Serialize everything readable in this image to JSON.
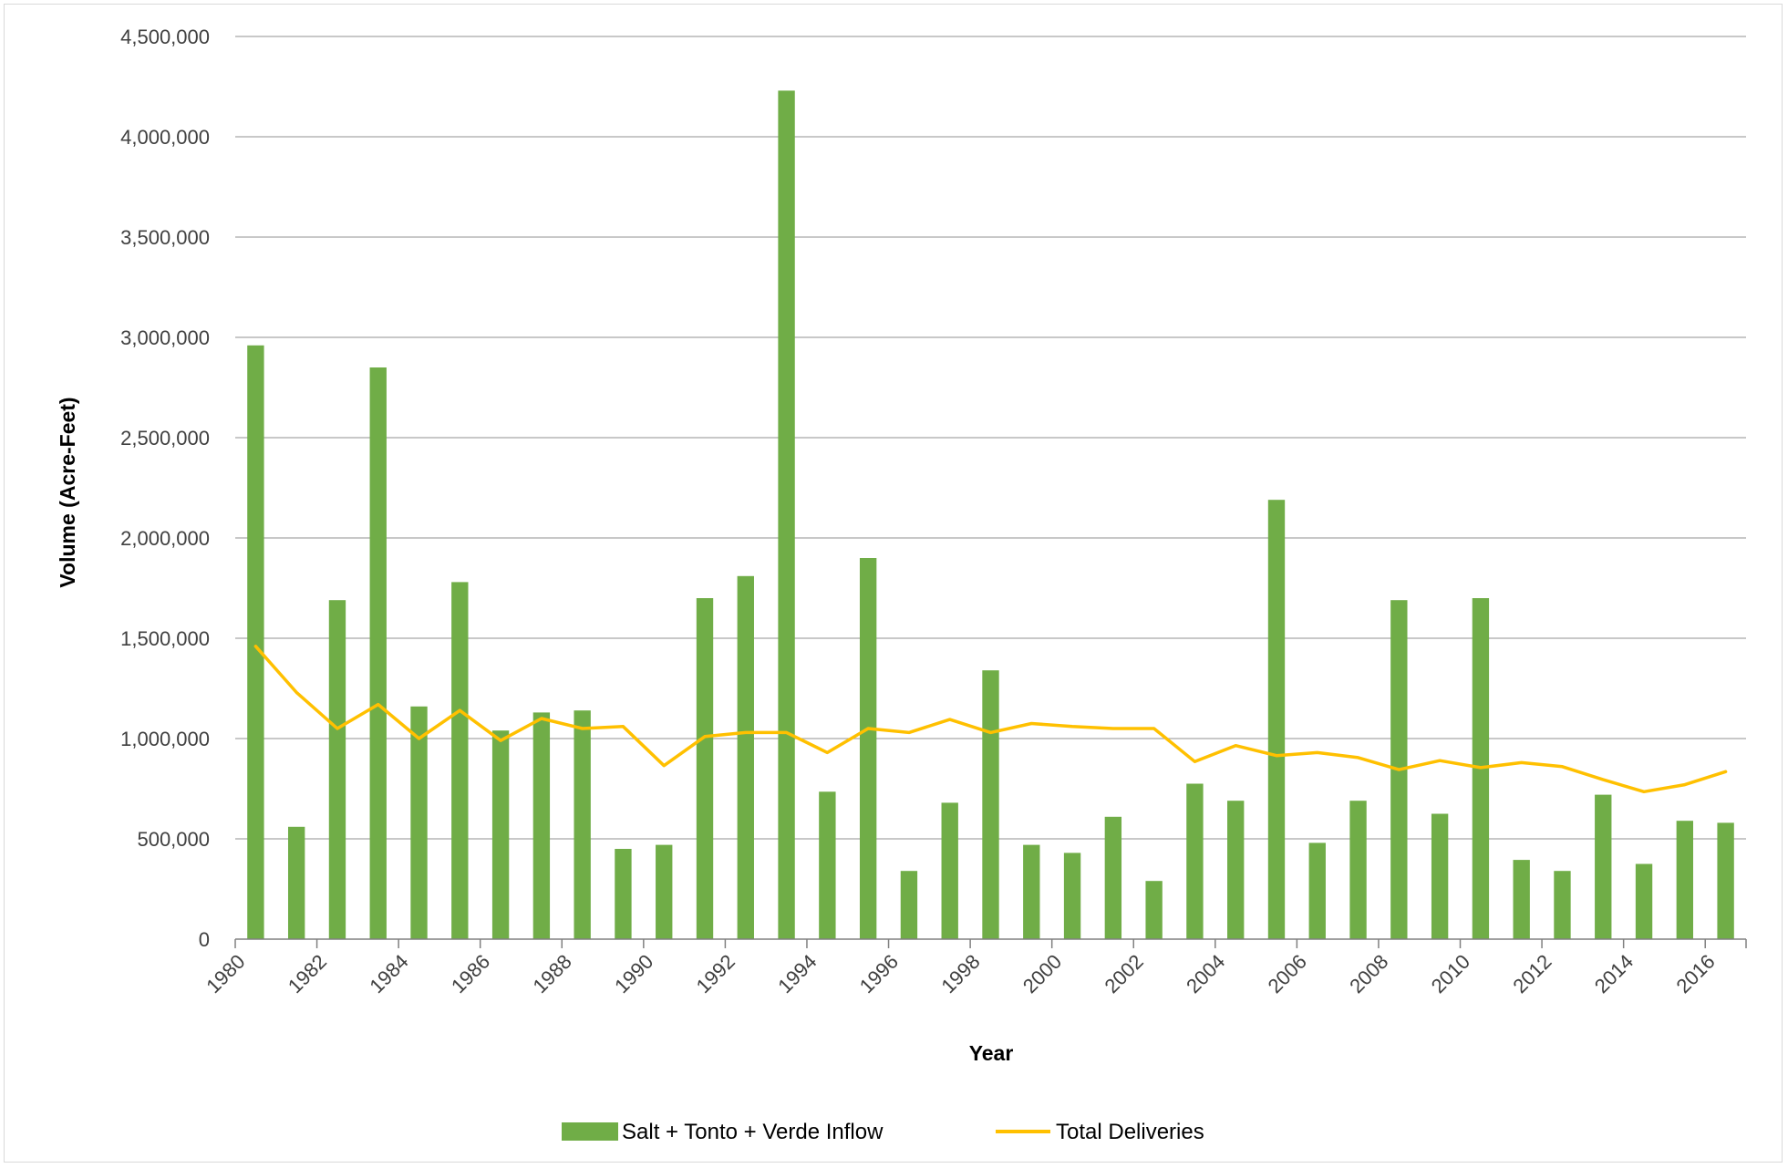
{
  "chart_data": {
    "type": "bar",
    "xlabel": "Year",
    "ylabel": "Volume (Acre-Feet)",
    "ylim": [
      0,
      4500000
    ],
    "yticks": [
      0,
      500000,
      1000000,
      1500000,
      2000000,
      2500000,
      3000000,
      3500000,
      4000000,
      4500000
    ],
    "ytick_labels": [
      "0",
      "500,000",
      "1,000,000",
      "1,500,000",
      "2,000,000",
      "2,500,000",
      "3,000,000",
      "3,500,000",
      "4,000,000",
      "4,500,000"
    ],
    "grid": true,
    "legend_position": "bottom",
    "categories": [
      "1980",
      "1981",
      "1982",
      "1983",
      "1984",
      "1985",
      "1986",
      "1987",
      "1988",
      "1989",
      "1990",
      "1991",
      "1992",
      "1993",
      "1994",
      "1995",
      "1996",
      "1997",
      "1998",
      "1999",
      "2000",
      "2001",
      "2002",
      "2003",
      "2004",
      "2005",
      "2006",
      "2007",
      "2008",
      "2009",
      "2010",
      "2011",
      "2012",
      "2013",
      "2014",
      "2015",
      "2016"
    ],
    "xtick_labels": [
      "1980",
      "1982",
      "1984",
      "1986",
      "1988",
      "1990",
      "1992",
      "1994",
      "1996",
      "1998",
      "2000",
      "2002",
      "2004",
      "2006",
      "2008",
      "2010",
      "2012",
      "2014",
      "2016"
    ],
    "series": [
      {
        "name": "Salt + Tonto + Verde Inflow",
        "type": "bar",
        "color": "#70ad47",
        "values": [
          2960000,
          560000,
          1690000,
          2850000,
          1160000,
          1780000,
          1040000,
          1130000,
          1140000,
          450000,
          470000,
          1700000,
          1810000,
          4230000,
          735000,
          1900000,
          340000,
          680000,
          1340000,
          470000,
          430000,
          610000,
          290000,
          775000,
          690000,
          2190000,
          480000,
          690000,
          1690000,
          625000,
          1700000,
          395000,
          340000,
          720000,
          375000,
          590000,
          580000
        ]
      },
      {
        "name": "Total Deliveries",
        "type": "line",
        "color": "#ffc000",
        "values": [
          1460000,
          1230000,
          1050000,
          1170000,
          1000000,
          1140000,
          990000,
          1100000,
          1050000,
          1060000,
          865000,
          1010000,
          1030000,
          1030000,
          930000,
          1050000,
          1030000,
          1095000,
          1030000,
          1075000,
          1060000,
          1050000,
          1050000,
          885000,
          965000,
          915000,
          930000,
          905000,
          845000,
          890000,
          855000,
          880000,
          860000,
          795000,
          735000,
          770000,
          835000
        ]
      }
    ]
  }
}
